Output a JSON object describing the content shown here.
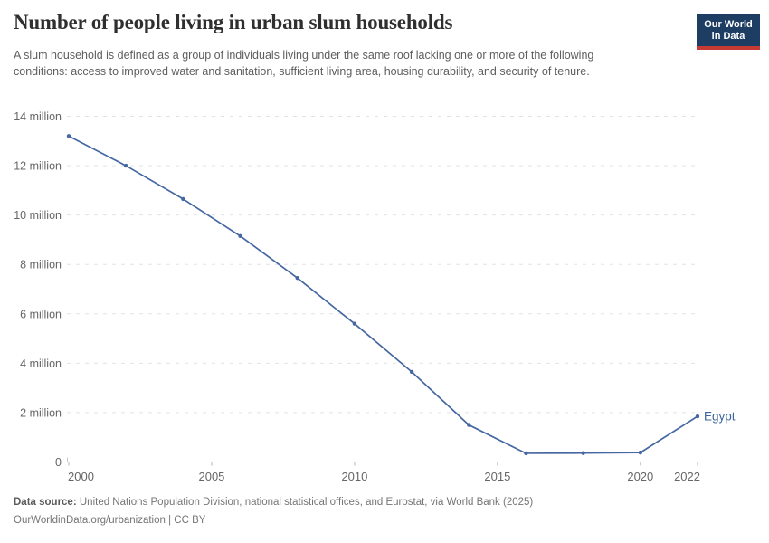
{
  "header": {
    "title": "Number of people living in urban slum households",
    "subtitle": "A slum household is defined as a group of individuals living under the same roof lacking one or more of the following conditions: access to improved water and sanitation, sufficient living area, housing durability, and security of tenure.",
    "logo_line1": "Our World",
    "logo_line2": "in Data"
  },
  "footer": {
    "datasource_label": "Data source:",
    "datasource_text": "United Nations Population Division, national statistical offices, and Eurostat, via World Bank (2025)",
    "attribution": "OurWorldinData.org/urbanization | CC BY"
  },
  "colors": {
    "line": "#4567a2",
    "series_label": "#3d639d",
    "logo_background": "#1d3d63",
    "logo_underline": "#c73a34",
    "grid": "#e3e3e3",
    "axis": "#c9c9c9",
    "tick": "#b5b5b5",
    "tick_label": "#666666"
  },
  "chart_data": {
    "type": "line",
    "title": "Number of people living in urban slum households",
    "xlabel": "",
    "ylabel": "",
    "xlim": [
      2000,
      2022
    ],
    "ylim": [
      0,
      14
    ],
    "grid": "horizontal-dashed",
    "legend": "label-at-line-end",
    "series": [
      {
        "name": "Egypt",
        "x": [
          2000,
          2002,
          2004,
          2006,
          2008,
          2010,
          2012,
          2014,
          2016,
          2018,
          2020,
          2022
        ],
        "values": [
          13.2,
          12.0,
          10.65,
          9.15,
          7.45,
          5.6,
          3.65,
          1.5,
          0.35,
          0.36,
          0.38,
          1.85
        ],
        "unit": "million people"
      }
    ],
    "yticks": [
      {
        "value": 0,
        "label": "0"
      },
      {
        "value": 2,
        "label": "2 million"
      },
      {
        "value": 4,
        "label": "4 million"
      },
      {
        "value": 6,
        "label": "6 million"
      },
      {
        "value": 8,
        "label": "8 million"
      },
      {
        "value": 10,
        "label": "10 million"
      },
      {
        "value": 12,
        "label": "12 million"
      },
      {
        "value": 14,
        "label": "14 million"
      }
    ],
    "xticks": [
      {
        "value": 2000,
        "label": "2000",
        "align": "start"
      },
      {
        "value": 2005,
        "label": "2005"
      },
      {
        "value": 2010,
        "label": "2010"
      },
      {
        "value": 2015,
        "label": "2015"
      },
      {
        "value": 2020,
        "label": "2020"
      },
      {
        "value": 2022,
        "label": "2022",
        "align": "end"
      }
    ]
  }
}
